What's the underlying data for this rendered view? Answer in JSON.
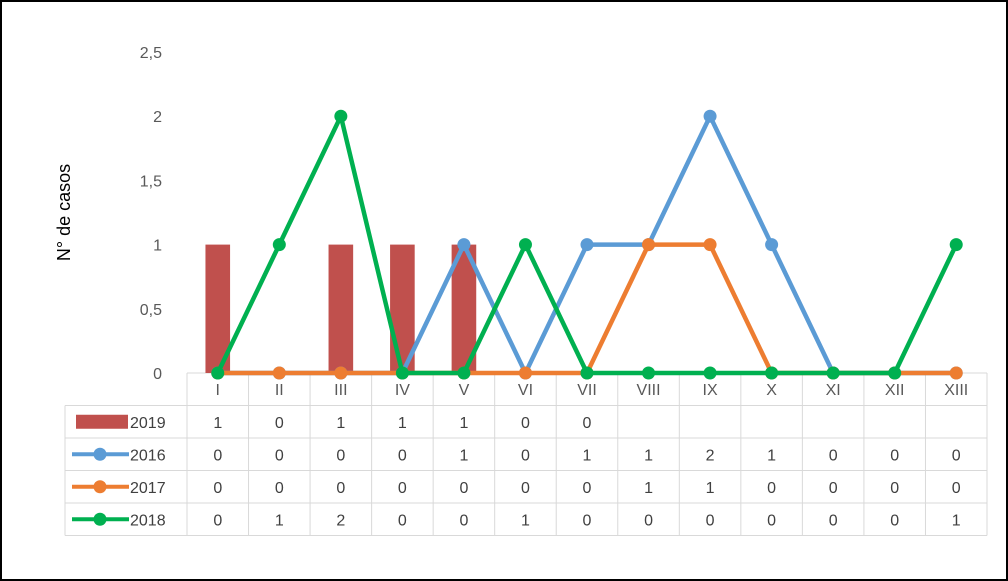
{
  "chart_data": {
    "type": "bar+line",
    "ylabel": "N° de casos",
    "ylim": [
      0,
      2.5
    ],
    "y_ticks": [
      "0",
      "0,5",
      "1",
      "1,5",
      "2",
      "2,5"
    ],
    "categories": [
      "I",
      "II",
      "III",
      "IV",
      "V",
      "VI",
      "VII",
      "VIII",
      "IX",
      "X",
      "XI",
      "XII",
      "XIII"
    ],
    "series": [
      {
        "name": "2019",
        "kind": "bar",
        "color": "#c0504d",
        "values": [
          1,
          0,
          1,
          1,
          1,
          0,
          0,
          null,
          null,
          null,
          null,
          null,
          null
        ]
      },
      {
        "name": "2016",
        "kind": "line",
        "color": "#5b9bd5",
        "values": [
          0,
          0,
          0,
          0,
          1,
          0,
          1,
          1,
          2,
          1,
          0,
          0,
          0
        ]
      },
      {
        "name": "2017",
        "kind": "line",
        "color": "#ed7d31",
        "values": [
          0,
          0,
          0,
          0,
          0,
          0,
          0,
          1,
          1,
          0,
          0,
          0,
          0
        ]
      },
      {
        "name": "2018",
        "kind": "line",
        "color": "#00b050",
        "values": [
          0,
          1,
          2,
          0,
          0,
          1,
          0,
          0,
          0,
          0,
          0,
          0,
          1
        ]
      }
    ],
    "grid": false,
    "legend": "data-table"
  }
}
